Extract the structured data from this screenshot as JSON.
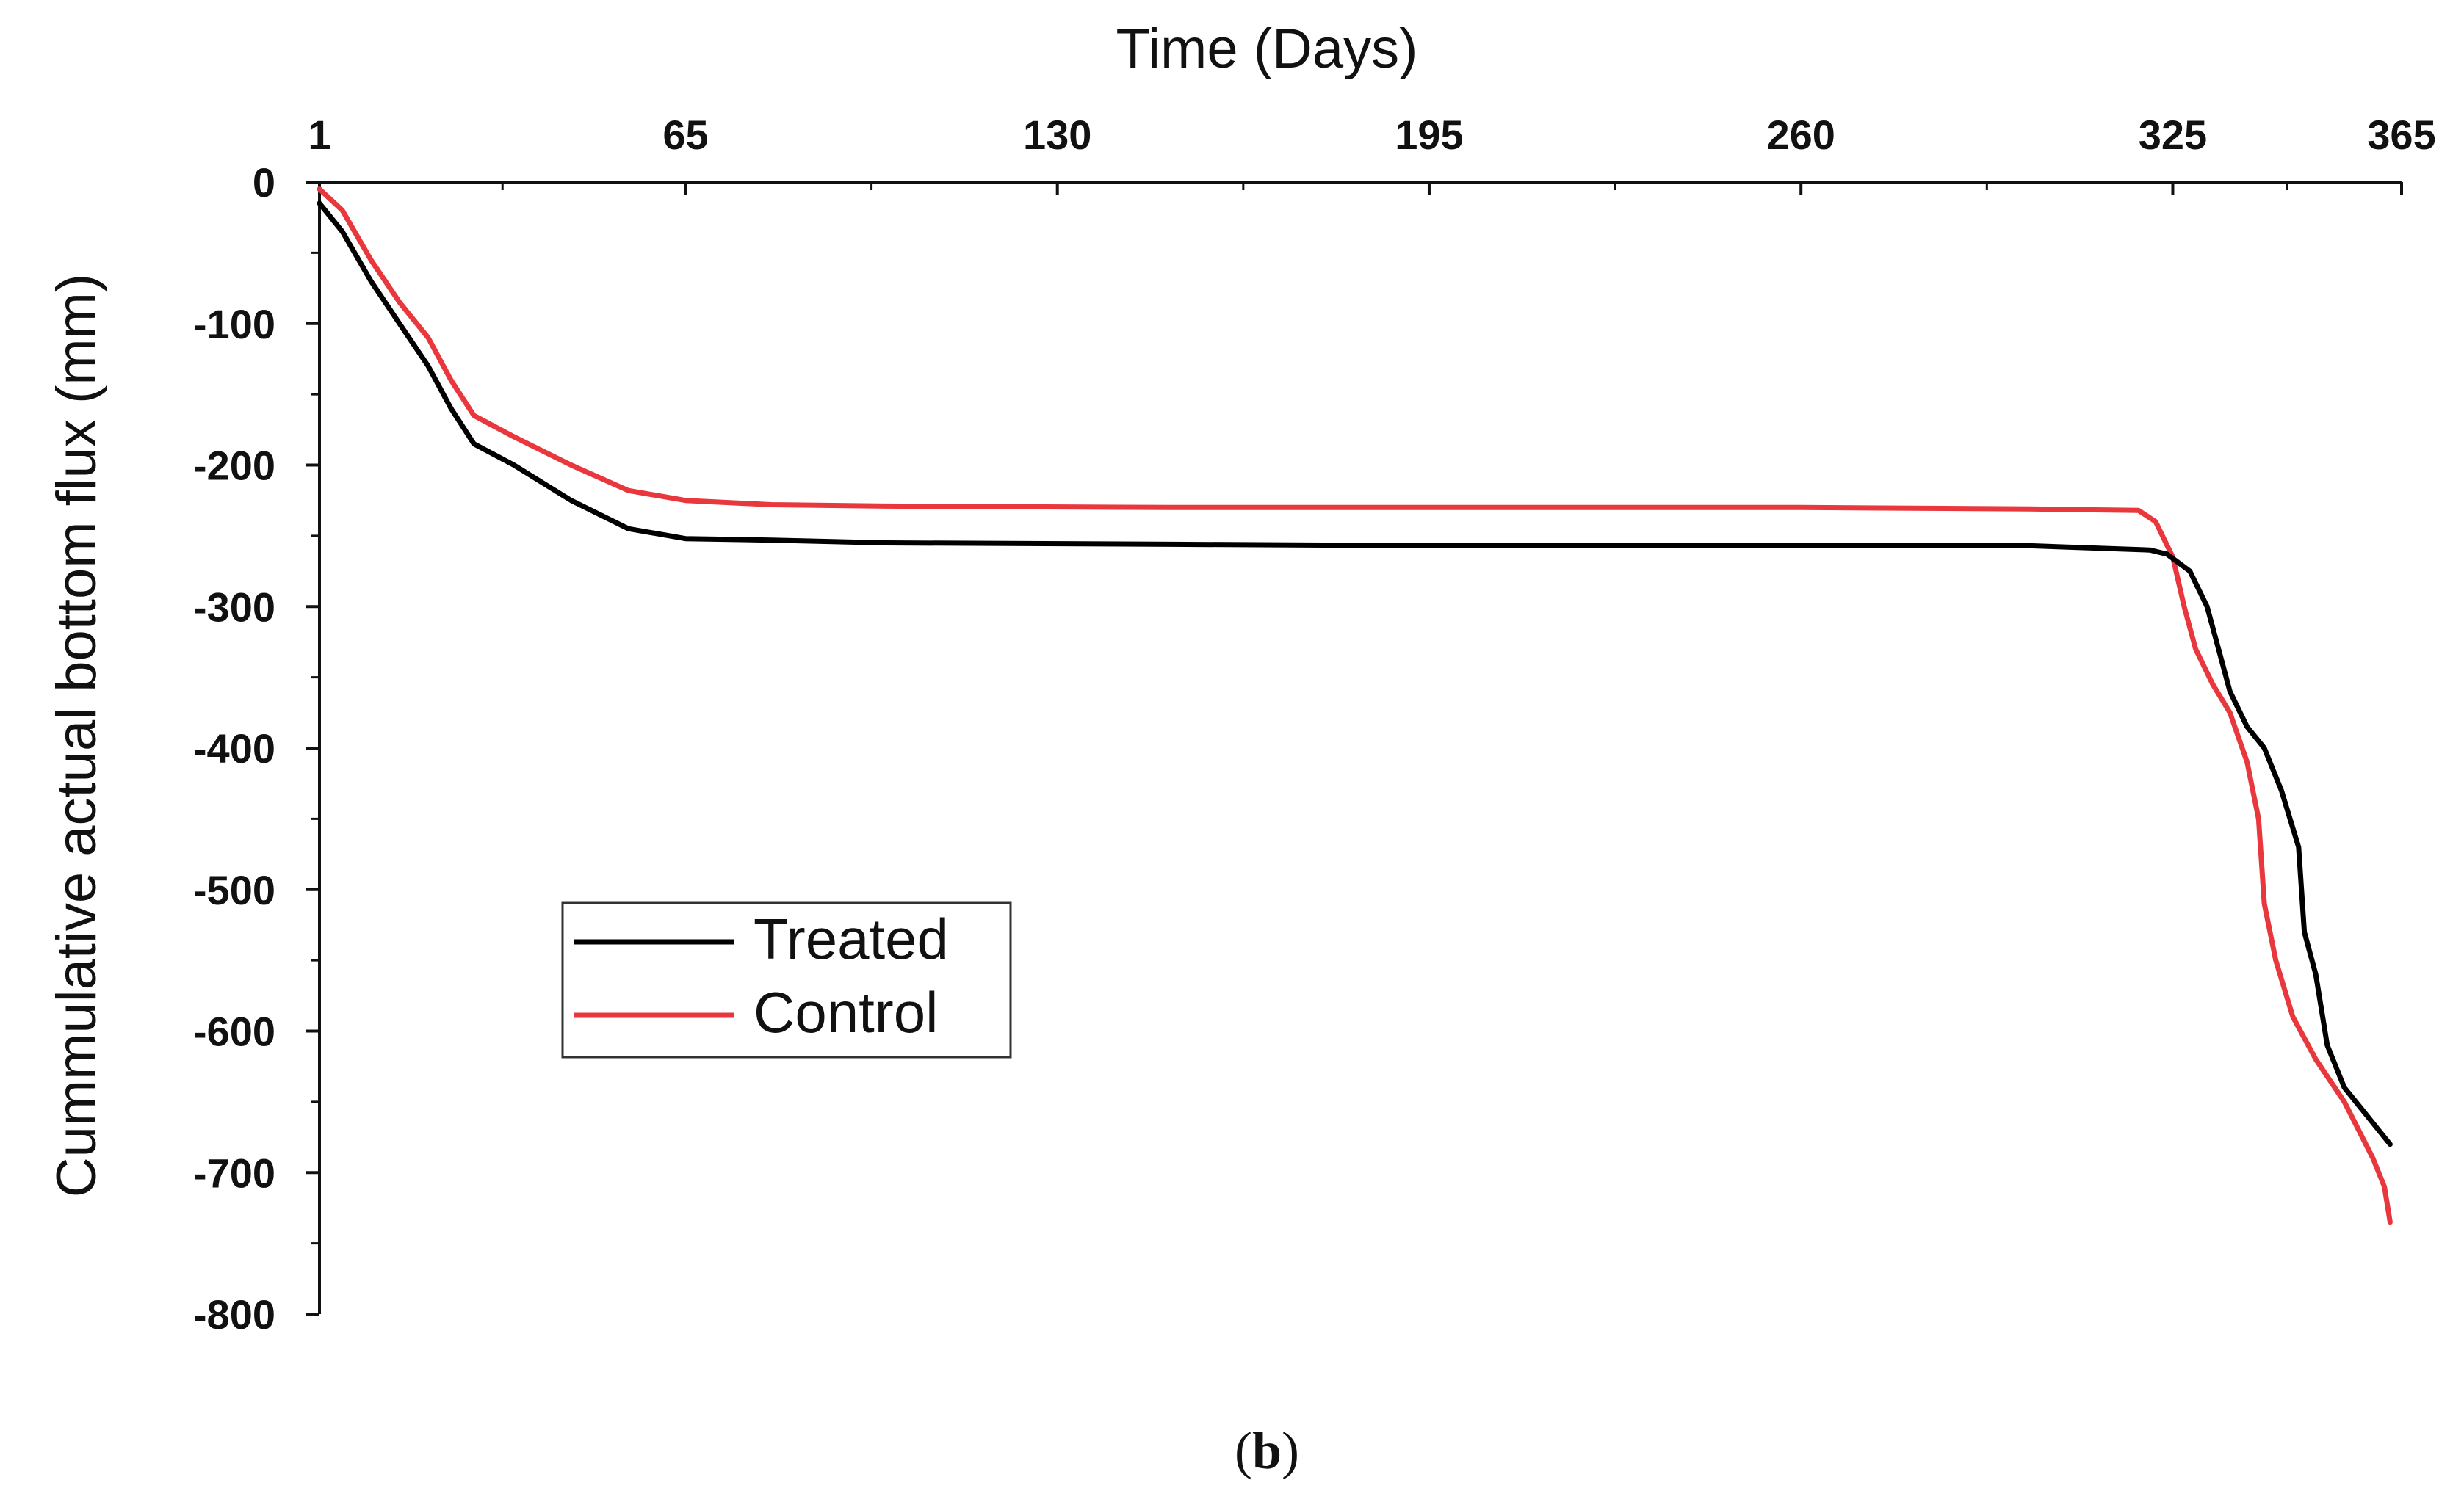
{
  "chart_data": {
    "type": "line",
    "title": "",
    "xlabel": "Time (Days)",
    "ylabel": "Cummulative actual bottom flux (mm)",
    "caption_letter": "b",
    "xlim": [
      1,
      365
    ],
    "ylim": [
      -800,
      0
    ],
    "x_ticks": [
      1,
      65,
      130,
      195,
      260,
      325,
      365
    ],
    "x_tick_labels": [
      "1",
      "65",
      "130",
      "195",
      "260",
      "325",
      "365"
    ],
    "y_ticks": [
      0,
      -100,
      -200,
      -300,
      -400,
      -500,
      -600,
      -700,
      -800
    ],
    "y_tick_labels": [
      "0",
      "-100",
      "-200",
      "-300",
      "-400",
      "-500",
      "-600",
      "-700",
      "-800"
    ],
    "grid": false,
    "legend_position": "lower-left",
    "series": [
      {
        "name": "Treated",
        "color": "#000000",
        "points": [
          [
            1,
            -15
          ],
          [
            5,
            -35
          ],
          [
            10,
            -70
          ],
          [
            15,
            -100
          ],
          [
            20,
            -130
          ],
          [
            24,
            -160
          ],
          [
            28,
            -185
          ],
          [
            35,
            -200
          ],
          [
            45,
            -225
          ],
          [
            55,
            -245
          ],
          [
            65,
            -252
          ],
          [
            80,
            -253
          ],
          [
            100,
            -255
          ],
          [
            150,
            -256
          ],
          [
            200,
            -257
          ],
          [
            260,
            -257
          ],
          [
            300,
            -257
          ],
          [
            321,
            -260
          ],
          [
            324,
            -263
          ],
          [
            328,
            -275
          ],
          [
            331,
            -300
          ],
          [
            333,
            -330
          ],
          [
            335,
            -360
          ],
          [
            338,
            -385
          ],
          [
            341,
            -400
          ],
          [
            344,
            -430
          ],
          [
            347,
            -470
          ],
          [
            348,
            -530
          ],
          [
            350,
            -560
          ],
          [
            352,
            -610
          ],
          [
            355,
            -640
          ],
          [
            358,
            -655
          ],
          [
            361,
            -670
          ],
          [
            363,
            -680
          ]
        ]
      },
      {
        "name": "Control",
        "color": "#e8383d",
        "points": [
          [
            1,
            -5
          ],
          [
            5,
            -20
          ],
          [
            10,
            -55
          ],
          [
            15,
            -85
          ],
          [
            20,
            -110
          ],
          [
            24,
            -140
          ],
          [
            28,
            -165
          ],
          [
            35,
            -180
          ],
          [
            45,
            -200
          ],
          [
            55,
            -218
          ],
          [
            65,
            -225
          ],
          [
            80,
            -228
          ],
          [
            100,
            -229
          ],
          [
            150,
            -230
          ],
          [
            200,
            -230
          ],
          [
            260,
            -230
          ],
          [
            300,
            -231
          ],
          [
            319,
            -232
          ],
          [
            322,
            -240
          ],
          [
            325,
            -265
          ],
          [
            327,
            -300
          ],
          [
            329,
            -330
          ],
          [
            332,
            -355
          ],
          [
            335,
            -375
          ],
          [
            338,
            -410
          ],
          [
            340,
            -450
          ],
          [
            341,
            -510
          ],
          [
            343,
            -550
          ],
          [
            346,
            -590
          ],
          [
            350,
            -620
          ],
          [
            355,
            -650
          ],
          [
            360,
            -690
          ],
          [
            362,
            -710
          ],
          [
            363,
            -735
          ]
        ]
      }
    ]
  }
}
